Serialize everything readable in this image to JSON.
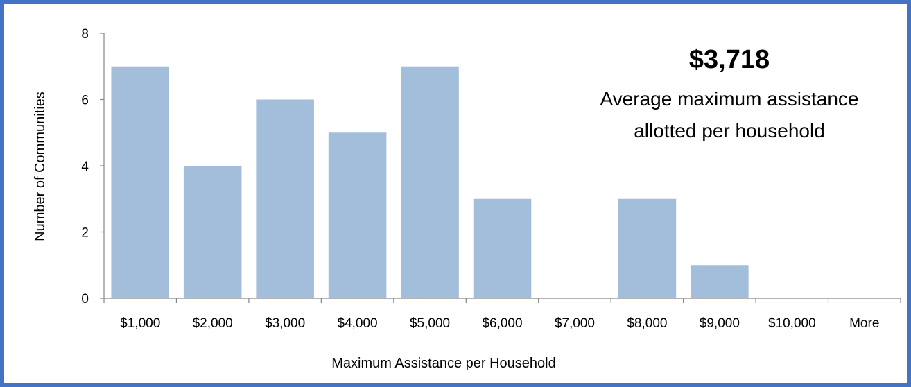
{
  "chart_data": {
    "type": "bar",
    "categories": [
      "$1,000",
      "$2,000",
      "$3,000",
      "$4,000",
      "$5,000",
      "$6,000",
      "$7,000",
      "$8,000",
      "$9,000",
      "$10,000",
      "More"
    ],
    "values": [
      7,
      4,
      6,
      5,
      7,
      3,
      0,
      3,
      1,
      0,
      0
    ],
    "xlabel": "Maximum Assistance per Household",
    "ylabel": "Number of Communities",
    "ylim": [
      0,
      8
    ],
    "yticks": [
      0,
      2,
      4,
      6,
      8
    ],
    "grid": false,
    "legend": "none",
    "bar_color": "#A3BEDA",
    "annotation": {
      "value": "$3,718",
      "line1": "Average maximum assistance",
      "line2": "allotted per household"
    }
  },
  "colors": {
    "border": "#4472C4",
    "axis": "#868686"
  }
}
